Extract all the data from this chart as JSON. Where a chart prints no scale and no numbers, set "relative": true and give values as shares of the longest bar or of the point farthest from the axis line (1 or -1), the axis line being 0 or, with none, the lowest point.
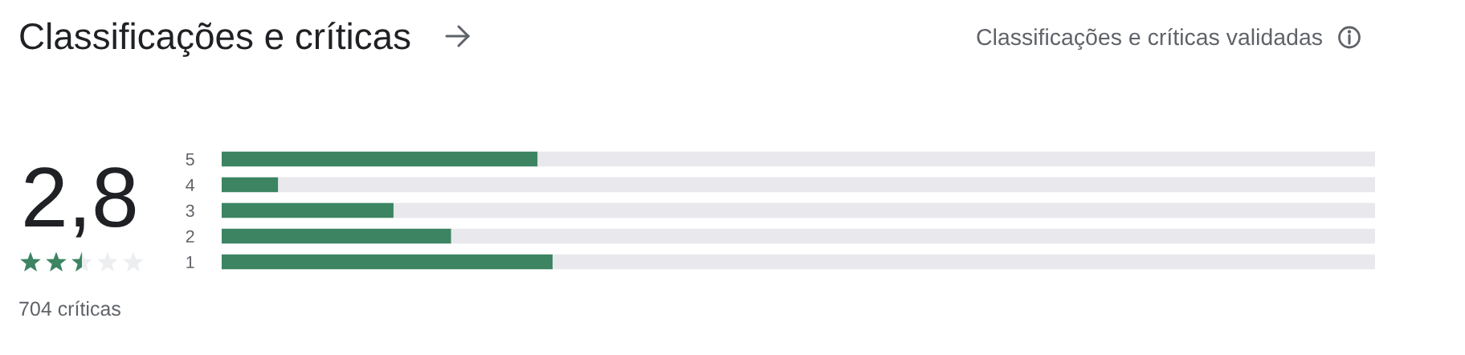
{
  "chart_data": {
    "type": "bar",
    "orientation": "horizontal",
    "stacked": true,
    "relative": true,
    "grid": false,
    "title": "Classificações e críticas",
    "subtitle": "Classificações e críticas validadas",
    "categories": [
      "5",
      "4",
      "3",
      "2",
      "1"
    ],
    "series": [
      {
        "color": "#3c8462",
        "values": [
          0.274,
          0.049,
          0.149,
          0.199,
          0.287
        ]
      },
      {
        "color": "#e8e8ed",
        "values": [
          0.726,
          0.951,
          0.851,
          0.801,
          0.713
        ]
      }
    ],
    "annotations": [
      "2,8",
      "704 críticas"
    ]
  }
}
